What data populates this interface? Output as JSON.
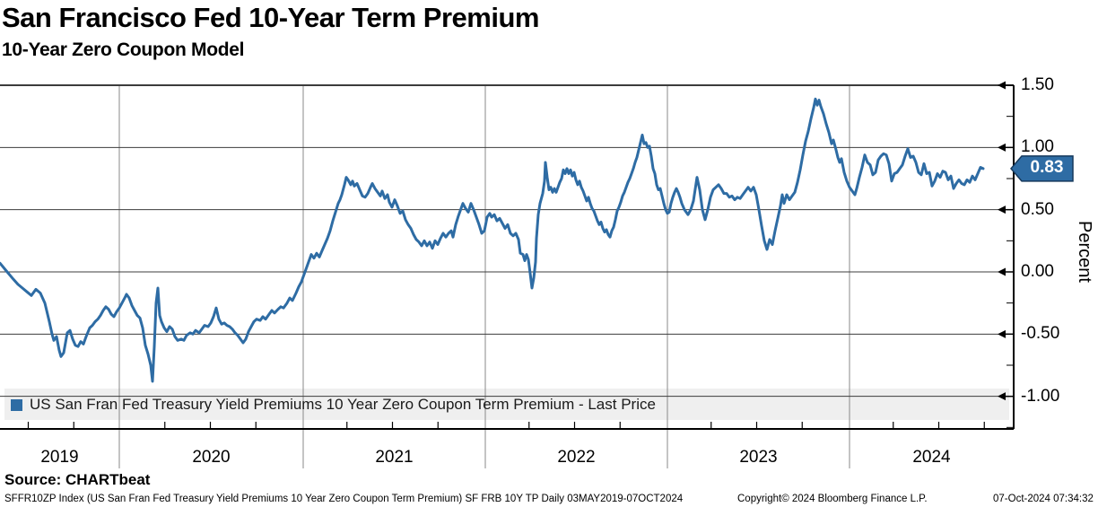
{
  "header": {
    "title": "San Francisco Fed 10-Year Term Premium",
    "subtitle": "10-Year Zero Coupon Model"
  },
  "legend": {
    "marker_color": "#2E6CA4",
    "label": "US San Fran Fed Treasury Yield Premiums 10 Year Zero Coupon Term Premium - Last Price"
  },
  "source_line": "Source: CHARTbeat",
  "footer": {
    "left": "SFFR10ZP Index (US San Fran Fed Treasury Yield Premiums 10 Year Zero Coupon Term Premium) SF FRB 10Y TP  Daily 03MAY2019-07OCT2024",
    "copyright": "Copyright© 2024 Bloomberg Finance L.P.",
    "datetime": "07-Oct-2024 07:34:32"
  },
  "y_axis": {
    "title": "Percent",
    "major_tick_labels": [
      "1.50",
      "1.00",
      "0.50",
      "0.00",
      "-0.50",
      "-1.00"
    ],
    "major_tick_values": [
      1.5,
      1.0,
      0.5,
      0.0,
      -0.5,
      -1.0
    ],
    "minor_tick_step": 0.25,
    "side": "right"
  },
  "x_axis": {
    "tick_labels": [
      "2019",
      "2020",
      "2021",
      "2022",
      "2023",
      "2024"
    ],
    "minor_ticks": "quarterly"
  },
  "last_price_badge": {
    "value": "0.83",
    "fill": "#2E6CA4",
    "border": "#16395C",
    "text_color": "#FFFFFF"
  },
  "colors": {
    "line": "#2E6CA4",
    "h_grid": "#3C3C3C",
    "v_grid": "#8A8A8A",
    "axis": "#000000",
    "legend_band": "#EFEFEF"
  },
  "chart_data": {
    "type": "line",
    "title": "San Francisco Fed 10-Year Term Premium",
    "subtitle": "10-Year Zero Coupon Model",
    "series_name": "US San Fran Fed Treasury Yield Premiums 10 Year Zero Coupon Term Premium - Last Price",
    "ylabel": "Percent",
    "ylim": [
      -1.2625,
      1.5
    ],
    "grid": true,
    "legend_position": "bottom-inside",
    "frequency": "Daily",
    "date_range": "03MAY2019-07OCT2024",
    "last_value": 0.83,
    "x_unit_note": "x is px from plot left edge; year = 2019.345 + x/203; Jan-1 gridlines at x = 133 (2020), 338 (2021), 541 (2022), 744 (2023), 947 (2024)",
    "year_gridlines_x": [
      133,
      338,
      541,
      744,
      947
    ],
    "points": [
      [
        0,
        0.07
      ],
      [
        8,
        0.0
      ],
      [
        15,
        -0.06
      ],
      [
        20,
        -0.1
      ],
      [
        25,
        -0.13
      ],
      [
        30,
        -0.16
      ],
      [
        35,
        -0.19
      ],
      [
        40,
        -0.14
      ],
      [
        45,
        -0.17
      ],
      [
        50,
        -0.25
      ],
      [
        55,
        -0.4
      ],
      [
        58,
        -0.5
      ],
      [
        60,
        -0.55
      ],
      [
        63,
        -0.52
      ],
      [
        66,
        -0.63
      ],
      [
        68,
        -0.68
      ],
      [
        71,
        -0.65
      ],
      [
        75,
        -0.49
      ],
      [
        78,
        -0.47
      ],
      [
        81,
        -0.54
      ],
      [
        84,
        -0.59
      ],
      [
        87,
        -0.6
      ],
      [
        90,
        -0.56
      ],
      [
        93,
        -0.58
      ],
      [
        96,
        -0.52
      ],
      [
        100,
        -0.45
      ],
      [
        103,
        -0.43
      ],
      [
        106,
        -0.4
      ],
      [
        109,
        -0.38
      ],
      [
        112,
        -0.35
      ],
      [
        115,
        -0.31
      ],
      [
        118,
        -0.28
      ],
      [
        121,
        -0.3
      ],
      [
        124,
        -0.34
      ],
      [
        127,
        -0.36
      ],
      [
        130,
        -0.32
      ],
      [
        133,
        -0.29
      ],
      [
        136,
        -0.25
      ],
      [
        139,
        -0.21
      ],
      [
        141,
        -0.18
      ],
      [
        144,
        -0.21
      ],
      [
        147,
        -0.27
      ],
      [
        150,
        -0.31
      ],
      [
        153,
        -0.35
      ],
      [
        156,
        -0.37
      ],
      [
        159,
        -0.45
      ],
      [
        162,
        -0.59
      ],
      [
        165,
        -0.66
      ],
      [
        168,
        -0.75
      ],
      [
        170,
        -0.88
      ],
      [
        172,
        -0.6
      ],
      [
        174,
        -0.25
      ],
      [
        176,
        -0.13
      ],
      [
        178,
        -0.35
      ],
      [
        180,
        -0.4
      ],
      [
        183,
        -0.45
      ],
      [
        186,
        -0.48
      ],
      [
        189,
        -0.44
      ],
      [
        192,
        -0.46
      ],
      [
        195,
        -0.52
      ],
      [
        198,
        -0.55
      ],
      [
        202,
        -0.54
      ],
      [
        205,
        -0.55
      ],
      [
        208,
        -0.51
      ],
      [
        212,
        -0.49
      ],
      [
        215,
        -0.5
      ],
      [
        218,
        -0.47
      ],
      [
        222,
        -0.49
      ],
      [
        225,
        -0.46
      ],
      [
        228,
        -0.43
      ],
      [
        232,
        -0.44
      ],
      [
        235,
        -0.41
      ],
      [
        238,
        -0.36
      ],
      [
        241,
        -0.29
      ],
      [
        244,
        -0.38
      ],
      [
        247,
        -0.42
      ],
      [
        250,
        -0.41
      ],
      [
        253,
        -0.43
      ],
      [
        256,
        -0.44
      ],
      [
        259,
        -0.46
      ],
      [
        262,
        -0.49
      ],
      [
        265,
        -0.51
      ],
      [
        268,
        -0.54
      ],
      [
        271,
        -0.57
      ],
      [
        274,
        -0.54
      ],
      [
        277,
        -0.48
      ],
      [
        280,
        -0.44
      ],
      [
        283,
        -0.4
      ],
      [
        286,
        -0.38
      ],
      [
        290,
        -0.39
      ],
      [
        293,
        -0.36
      ],
      [
        296,
        -0.38
      ],
      [
        300,
        -0.34
      ],
      [
        303,
        -0.31
      ],
      [
        306,
        -0.33
      ],
      [
        310,
        -0.3
      ],
      [
        313,
        -0.28
      ],
      [
        316,
        -0.29
      ],
      [
        320,
        -0.25
      ],
      [
        323,
        -0.21
      ],
      [
        326,
        -0.23
      ],
      [
        330,
        -0.17
      ],
      [
        333,
        -0.12
      ],
      [
        336,
        -0.08
      ],
      [
        338,
        -0.04
      ],
      [
        341,
        0.02
      ],
      [
        344,
        0.08
      ],
      [
        347,
        0.14
      ],
      [
        350,
        0.11
      ],
      [
        353,
        0.15
      ],
      [
        356,
        0.12
      ],
      [
        359,
        0.17
      ],
      [
        362,
        0.22
      ],
      [
        365,
        0.27
      ],
      [
        368,
        0.33
      ],
      [
        371,
        0.41
      ],
      [
        374,
        0.48
      ],
      [
        377,
        0.55
      ],
      [
        379,
        0.58
      ],
      [
        381,
        0.62
      ],
      [
        384,
        0.7
      ],
      [
        386,
        0.76
      ],
      [
        388,
        0.74
      ],
      [
        391,
        0.7
      ],
      [
        393,
        0.73
      ],
      [
        395,
        0.69
      ],
      [
        398,
        0.71
      ],
      [
        401,
        0.66
      ],
      [
        404,
        0.61
      ],
      [
        407,
        0.6
      ],
      [
        410,
        0.63
      ],
      [
        413,
        0.68
      ],
      [
        415,
        0.71
      ],
      [
        418,
        0.67
      ],
      [
        421,
        0.64
      ],
      [
        424,
        0.61
      ],
      [
        426,
        0.65
      ],
      [
        429,
        0.59
      ],
      [
        432,
        0.62
      ],
      [
        434,
        0.56
      ],
      [
        437,
        0.52
      ],
      [
        440,
        0.58
      ],
      [
        443,
        0.53
      ],
      [
        446,
        0.47
      ],
      [
        449,
        0.49
      ],
      [
        452,
        0.42
      ],
      [
        455,
        0.38
      ],
      [
        458,
        0.35
      ],
      [
        461,
        0.3
      ],
      [
        464,
        0.26
      ],
      [
        467,
        0.24
      ],
      [
        470,
        0.21
      ],
      [
        473,
        0.25
      ],
      [
        476,
        0.21
      ],
      [
        479,
        0.24
      ],
      [
        482,
        0.19
      ],
      [
        485,
        0.25
      ],
      [
        488,
        0.22
      ],
      [
        491,
        0.27
      ],
      [
        494,
        0.31
      ],
      [
        497,
        0.28
      ],
      [
        500,
        0.31
      ],
      [
        503,
        0.33
      ],
      [
        505,
        0.28
      ],
      [
        508,
        0.38
      ],
      [
        511,
        0.45
      ],
      [
        514,
        0.51
      ],
      [
        516,
        0.55
      ],
      [
        519,
        0.51
      ],
      [
        522,
        0.48
      ],
      [
        525,
        0.55
      ],
      [
        528,
        0.5
      ],
      [
        531,
        0.44
      ],
      [
        534,
        0.38
      ],
      [
        537,
        0.31
      ],
      [
        540,
        0.33
      ],
      [
        543,
        0.44
      ],
      [
        546,
        0.47
      ],
      [
        548,
        0.44
      ],
      [
        551,
        0.46
      ],
      [
        554,
        0.41
      ],
      [
        557,
        0.43
      ],
      [
        560,
        0.39
      ],
      [
        563,
        0.35
      ],
      [
        566,
        0.38
      ],
      [
        569,
        0.31
      ],
      [
        572,
        0.29
      ],
      [
        575,
        0.31
      ],
      [
        578,
        0.26
      ],
      [
        580,
        0.15
      ],
      [
        583,
        0.14
      ],
      [
        585,
        0.09
      ],
      [
        587,
        0.14
      ],
      [
        589,
        0.1
      ],
      [
        591,
        -0.01
      ],
      [
        593,
        -0.13
      ],
      [
        595,
        -0.05
      ],
      [
        597,
        0.08
      ],
      [
        598,
        0.27
      ],
      [
        600,
        0.46
      ],
      [
        602,
        0.55
      ],
      [
        605,
        0.63
      ],
      [
        607,
        0.73
      ],
      [
        608,
        0.88
      ],
      [
        610,
        0.76
      ],
      [
        612,
        0.66
      ],
      [
        614,
        0.68
      ],
      [
        616,
        0.64
      ],
      [
        618,
        0.67
      ],
      [
        620,
        0.64
      ],
      [
        622,
        0.68
      ],
      [
        624,
        0.72
      ],
      [
        626,
        0.75
      ],
      [
        628,
        0.82
      ],
      [
        630,
        0.79
      ],
      [
        632,
        0.83
      ],
      [
        634,
        0.79
      ],
      [
        636,
        0.82
      ],
      [
        638,
        0.77
      ],
      [
        640,
        0.8
      ],
      [
        642,
        0.74
      ],
      [
        644,
        0.7
      ],
      [
        646,
        0.73
      ],
      [
        648,
        0.68
      ],
      [
        650,
        0.65
      ],
      [
        652,
        0.61
      ],
      [
        654,
        0.57
      ],
      [
        656,
        0.6
      ],
      [
        658,
        0.55
      ],
      [
        660,
        0.51
      ],
      [
        662,
        0.49
      ],
      [
        664,
        0.45
      ],
      [
        666,
        0.41
      ],
      [
        668,
        0.38
      ],
      [
        670,
        0.4
      ],
      [
        672,
        0.35
      ],
      [
        674,
        0.32
      ],
      [
        676,
        0.34
      ],
      [
        678,
        0.3
      ],
      [
        680,
        0.28
      ],
      [
        682,
        0.33
      ],
      [
        684,
        0.36
      ],
      [
        686,
        0.42
      ],
      [
        688,
        0.49
      ],
      [
        690,
        0.52
      ],
      [
        692,
        0.56
      ],
      [
        694,
        0.61
      ],
      [
        696,
        0.64
      ],
      [
        698,
        0.68
      ],
      [
        700,
        0.72
      ],
      [
        702,
        0.75
      ],
      [
        704,
        0.79
      ],
      [
        706,
        0.83
      ],
      [
        708,
        0.88
      ],
      [
        710,
        0.92
      ],
      [
        712,
        0.98
      ],
      [
        714,
        1.04
      ],
      [
        716,
        1.1
      ],
      [
        718,
        1.03
      ],
      [
        720,
        1.04
      ],
      [
        722,
        1.0
      ],
      [
        724,
        1.01
      ],
      [
        726,
        0.93
      ],
      [
        728,
        0.83
      ],
      [
        730,
        0.79
      ],
      [
        732,
        0.7
      ],
      [
        734,
        0.66
      ],
      [
        736,
        0.67
      ],
      [
        738,
        0.61
      ],
      [
        740,
        0.55
      ],
      [
        742,
        0.5
      ],
      [
        744,
        0.47
      ],
      [
        746,
        0.48
      ],
      [
        748,
        0.55
      ],
      [
        750,
        0.6
      ],
      [
        752,
        0.64
      ],
      [
        754,
        0.67
      ],
      [
        756,
        0.64
      ],
      [
        758,
        0.6
      ],
      [
        760,
        0.55
      ],
      [
        763,
        0.5
      ],
      [
        767,
        0.46
      ],
      [
        770,
        0.5
      ],
      [
        773,
        0.57
      ],
      [
        777,
        0.76
      ],
      [
        780,
        0.66
      ],
      [
        783,
        0.5
      ],
      [
        786,
        0.42
      ],
      [
        789,
        0.5
      ],
      [
        792,
        0.6
      ],
      [
        795,
        0.66
      ],
      [
        798,
        0.68
      ],
      [
        801,
        0.7
      ],
      [
        804,
        0.67
      ],
      [
        807,
        0.63
      ],
      [
        810,
        0.63
      ],
      [
        813,
        0.6
      ],
      [
        816,
        0.61
      ],
      [
        819,
        0.58
      ],
      [
        822,
        0.6
      ],
      [
        825,
        0.59
      ],
      [
        828,
        0.62
      ],
      [
        831,
        0.65
      ],
      [
        834,
        0.68
      ],
      [
        837,
        0.65
      ],
      [
        840,
        0.68
      ],
      [
        843,
        0.62
      ],
      [
        846,
        0.5
      ],
      [
        849,
        0.37
      ],
      [
        852,
        0.25
      ],
      [
        855,
        0.18
      ],
      [
        858,
        0.26
      ],
      [
        861,
        0.22
      ],
      [
        864,
        0.33
      ],
      [
        867,
        0.43
      ],
      [
        870,
        0.53
      ],
      [
        872,
        0.62
      ],
      [
        874,
        0.55
      ],
      [
        877,
        0.62
      ],
      [
        880,
        0.58
      ],
      [
        883,
        0.61
      ],
      [
        886,
        0.64
      ],
      [
        889,
        0.72
      ],
      [
        892,
        0.82
      ],
      [
        895,
        0.94
      ],
      [
        898,
        1.05
      ],
      [
        901,
        1.13
      ],
      [
        904,
        1.23
      ],
      [
        907,
        1.32
      ],
      [
        909,
        1.39
      ],
      [
        911,
        1.34
      ],
      [
        913,
        1.38
      ],
      [
        915,
        1.33
      ],
      [
        918,
        1.27
      ],
      [
        921,
        1.19
      ],
      [
        924,
        1.12
      ],
      [
        927,
        1.03
      ],
      [
        929,
        1.06
      ],
      [
        932,
        0.98
      ],
      [
        934,
        0.92
      ],
      [
        936,
        0.88
      ],
      [
        938,
        0.91
      ],
      [
        941,
        0.8
      ],
      [
        944,
        0.73
      ],
      [
        947,
        0.68
      ],
      [
        950,
        0.65
      ],
      [
        953,
        0.62
      ],
      [
        955,
        0.67
      ],
      [
        958,
        0.76
      ],
      [
        961,
        0.84
      ],
      [
        964,
        0.94
      ],
      [
        967,
        0.88
      ],
      [
        970,
        0.86
      ],
      [
        973,
        0.78
      ],
      [
        976,
        0.8
      ],
      [
        979,
        0.9
      ],
      [
        982,
        0.93
      ],
      [
        985,
        0.95
      ],
      [
        988,
        0.94
      ],
      [
        991,
        0.87
      ],
      [
        994,
        0.73
      ],
      [
        997,
        0.79
      ],
      [
        1000,
        0.8
      ],
      [
        1003,
        0.83
      ],
      [
        1006,
        0.86
      ],
      [
        1009,
        0.93
      ],
      [
        1012,
        0.99
      ],
      [
        1015,
        0.92
      ],
      [
        1018,
        0.93
      ],
      [
        1021,
        0.88
      ],
      [
        1024,
        0.8
      ],
      [
        1027,
        0.78
      ],
      [
        1030,
        0.87
      ],
      [
        1033,
        0.79
      ],
      [
        1036,
        0.8
      ],
      [
        1039,
        0.69
      ],
      [
        1042,
        0.73
      ],
      [
        1045,
        0.79
      ],
      [
        1048,
        0.76
      ],
      [
        1051,
        0.81
      ],
      [
        1054,
        0.8
      ],
      [
        1057,
        0.74
      ],
      [
        1060,
        0.77
      ],
      [
        1063,
        0.67
      ],
      [
        1066,
        0.71
      ],
      [
        1069,
        0.74
      ],
      [
        1072,
        0.71
      ],
      [
        1075,
        0.7
      ],
      [
        1078,
        0.74
      ],
      [
        1081,
        0.72
      ],
      [
        1084,
        0.77
      ],
      [
        1087,
        0.74
      ],
      [
        1090,
        0.79
      ],
      [
        1093,
        0.84
      ],
      [
        1096,
        0.83
      ]
    ]
  }
}
